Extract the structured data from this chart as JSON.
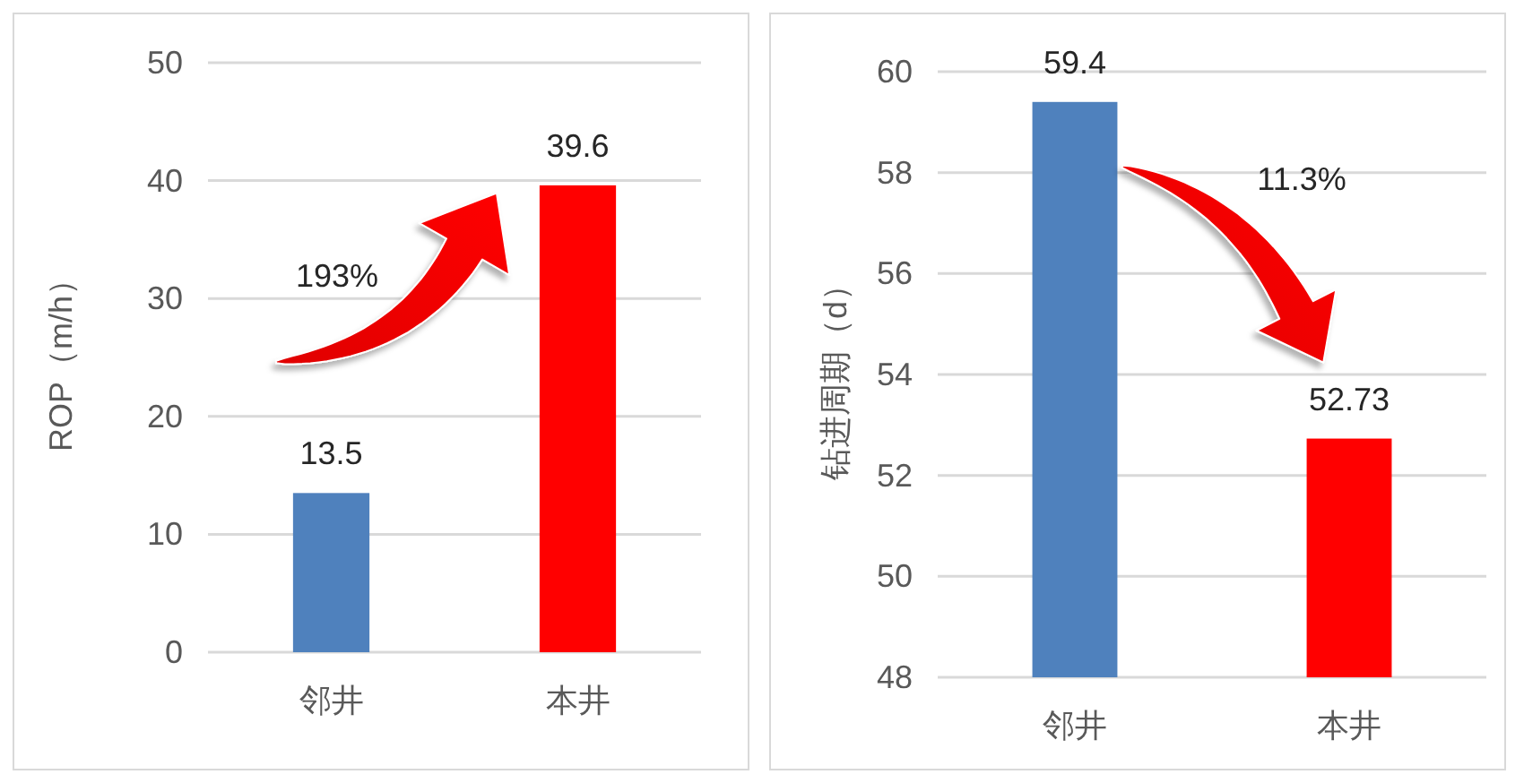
{
  "chart_data": [
    {
      "type": "bar",
      "categories": [
        "邻井",
        "本井"
      ],
      "values": [
        13.5,
        39.6
      ],
      "colors": [
        "#4f81bd",
        "#ff0000"
      ],
      "ylabel": "ROP（m/h）",
      "ylim": [
        0,
        50
      ],
      "yticks": [
        0,
        10,
        20,
        30,
        40,
        50
      ],
      "grid": "y",
      "data_labels": true,
      "annotations": [
        "193%"
      ]
    },
    {
      "type": "bar",
      "categories": [
        "邻井",
        "本井"
      ],
      "values": [
        59.4,
        52.73
      ],
      "colors": [
        "#4f81bd",
        "#ff0000"
      ],
      "ylabel": "钻进周期（d）",
      "ylim": [
        48,
        60
      ],
      "yticks": [
        48,
        50,
        52,
        54,
        56,
        58,
        60
      ],
      "grid": "y",
      "data_labels": true,
      "annotations": [
        "11.3%"
      ]
    }
  ]
}
